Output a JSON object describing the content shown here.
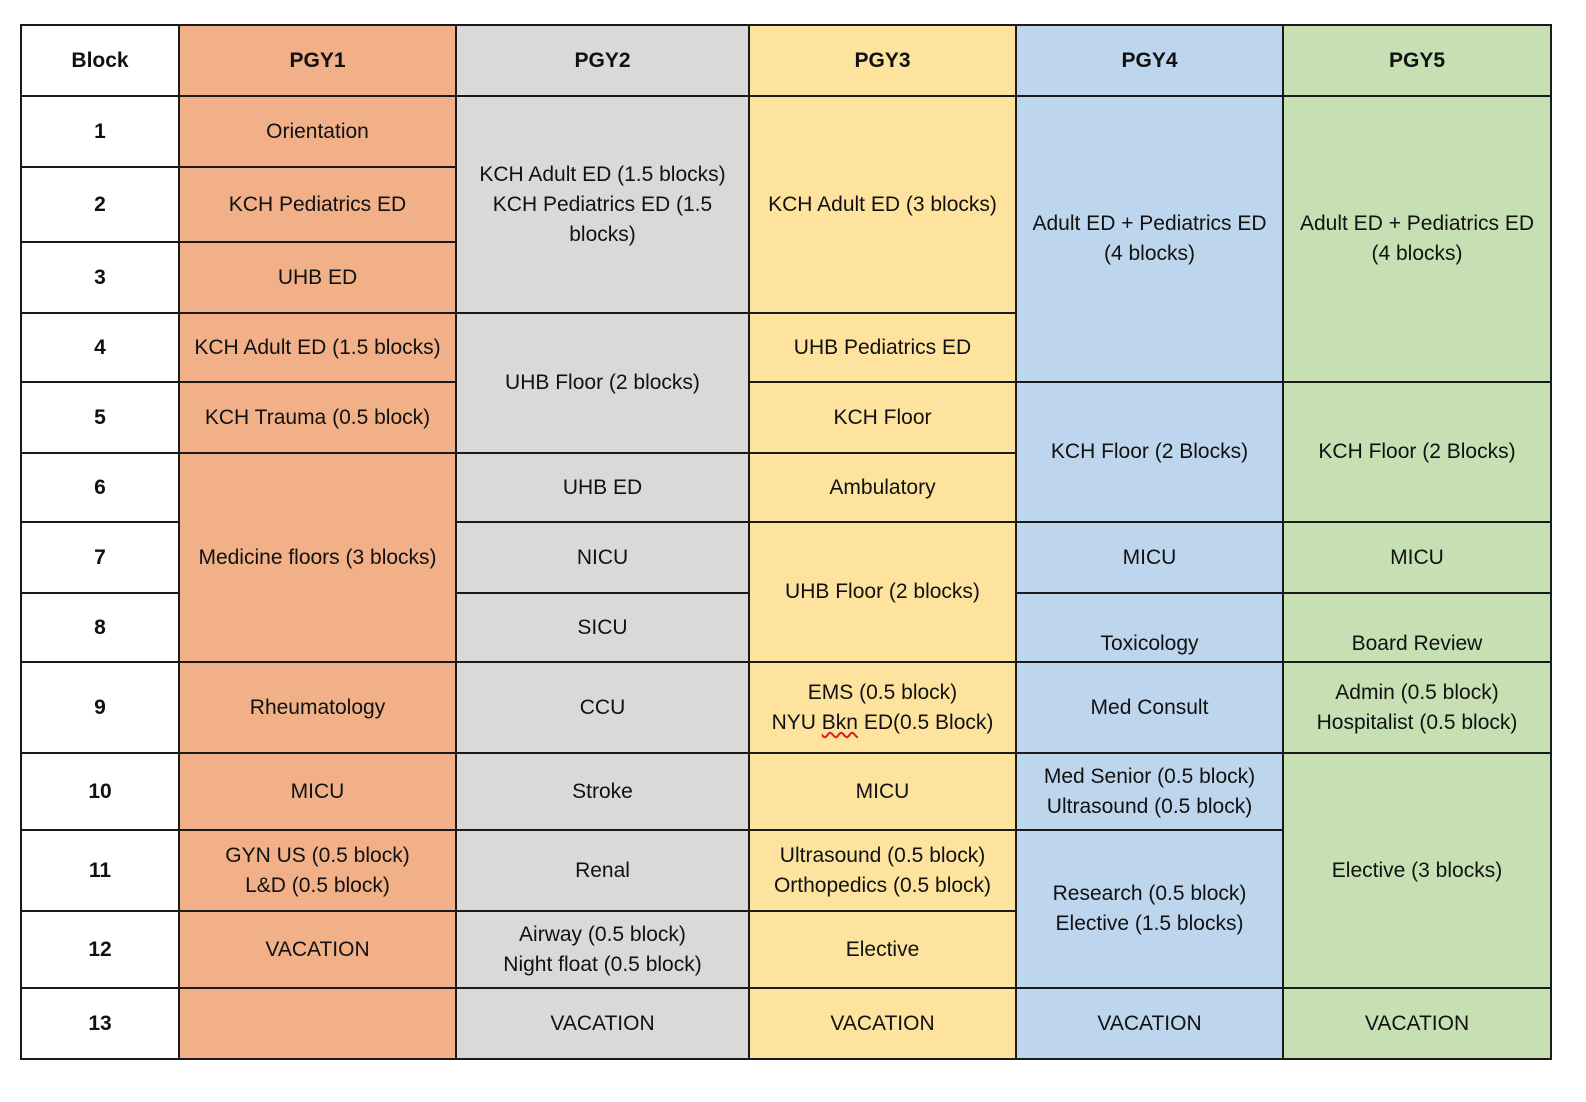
{
  "colors": {
    "pgy1": "#f2b088",
    "pgy2": "#d9d9d9",
    "pgy3": "#fde39e",
    "pgy4": "#bdd6ee",
    "pgy5": "#c6e0b4",
    "white": "#ffffff"
  },
  "headers": [
    "Block",
    "PGY1",
    "PGY2",
    "PGY3",
    "PGY4",
    "PGY5"
  ],
  "blocks": [
    "1",
    "2",
    "3",
    "4",
    "5",
    "6",
    "7",
    "8",
    "9",
    "10",
    "11",
    "12",
    "13"
  ],
  "pgy1": {
    "b1": "Orientation",
    "b2": "KCH Pediatrics ED",
    "b3": "UHB ED",
    "b4": "KCH Adult ED (1.5 blocks)",
    "b5": "KCH Trauma (0.5 block)",
    "b6_8": "Medicine floors (3 blocks)",
    "b9": "Rheumatology",
    "b10": "MICU",
    "b11_line1": "GYN US (0.5 block)",
    "b11_line2": "L&D (0.5 block)",
    "b12": "VACATION",
    "b13": ""
  },
  "pgy2": {
    "b1_3_line1": "KCH Adult ED (1.5 blocks)",
    "b1_3_line2": "KCH Pediatrics ED (1.5 blocks)",
    "b4_5": "UHB Floor (2 blocks)",
    "b6": "UHB ED",
    "b7": "NICU",
    "b8": "SICU",
    "b9": "CCU",
    "b10": "Stroke",
    "b11": "Renal",
    "b12_line1": "Airway (0.5 block)",
    "b12_line2": "Night float (0.5 block)",
    "b13": "VACATION"
  },
  "pgy3": {
    "b1_3": "KCH Adult ED (3 blocks)",
    "b4": "UHB Pediatrics ED",
    "b5": "KCH Floor",
    "b6": "Ambulatory",
    "b7_8": "UHB Floor (2 blocks)",
    "b9_line1": "EMS (0.5 block)",
    "b9_line2_a": "NYU",
    "b9_line2_b": "Bkn",
    "b9_line2_c": "ED(0.5 Block)",
    "b10": "MICU",
    "b11_line1": "Ultrasound (0.5 block)",
    "b11_line2": "Orthopedics (0.5 block)",
    "b12": "Elective",
    "b13": "VACATION"
  },
  "pgy4": {
    "b1_4_line1": "Adult ED + Pediatrics ED",
    "b1_4_line2": "(4 blocks)",
    "b5_6": "KCH Floor (2 Blocks)",
    "b7": "MICU",
    "b8": "Toxicology",
    "b9": "Med Consult",
    "b10_line1": "Med Senior (0.5 block)",
    "b10_line2": "Ultrasound (0.5 block)",
    "b11_12_line1": "Research (0.5 block)",
    "b11_12_line2": "Elective (1.5 blocks)",
    "b13": "VACATION"
  },
  "pgy5": {
    "b1_4_line1": "Adult ED + Pediatrics ED",
    "b1_4_line2": "(4 blocks)",
    "b5_6": "KCH Floor (2 Blocks)",
    "b7": "MICU",
    "b8": "Board Review",
    "b9_line1": "Admin (0.5 block)",
    "b9_line2": "Hospitalist (0.5 block)",
    "b10_12": "Elective (3 blocks)",
    "b13": "VACATION"
  }
}
